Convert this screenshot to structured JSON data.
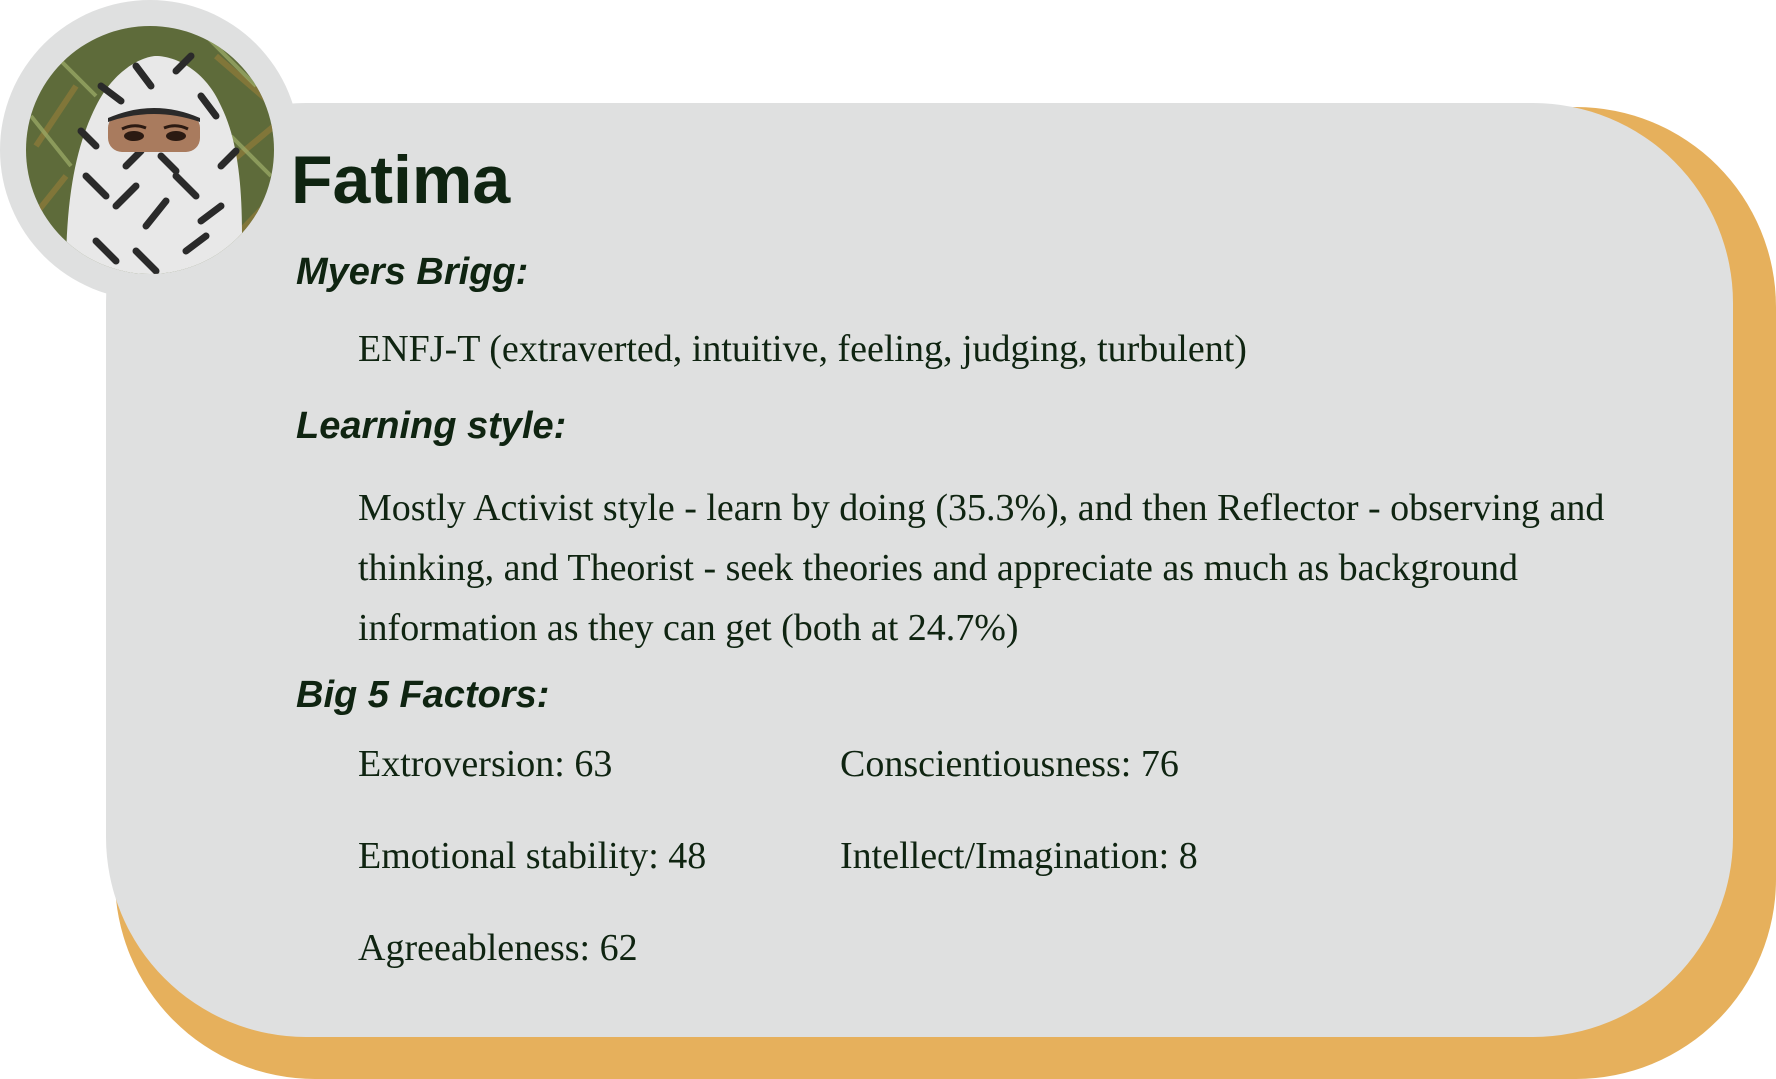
{
  "colors": {
    "card_background": "#dfe0e0",
    "card_shadow": "#e6b05c",
    "text": "#0f2411"
  },
  "profile": {
    "avatar_icon": "person-photo",
    "name": "Fatima"
  },
  "sections": {
    "myers_brigg": {
      "heading": "Myers Brigg:",
      "text": "ENFJ-T (extraverted, intuitive, feeling, judging, turbulent)"
    },
    "learning_style": {
      "heading": "Learning style:",
      "text": "Mostly Activist style - learn by doing (35.3%), and then Reflector - observing and thinking, and Theorist - seek theories and appreciate as much as background information as they can get (both at 24.7%)"
    },
    "big5": {
      "heading": "Big 5 Factors:",
      "factors": [
        "Extroversion: 63",
        "Conscientiousness: 76",
        "Emotional stability: 48",
        "Intellect/Imagination: 8",
        "Agreeableness: 62"
      ]
    }
  }
}
